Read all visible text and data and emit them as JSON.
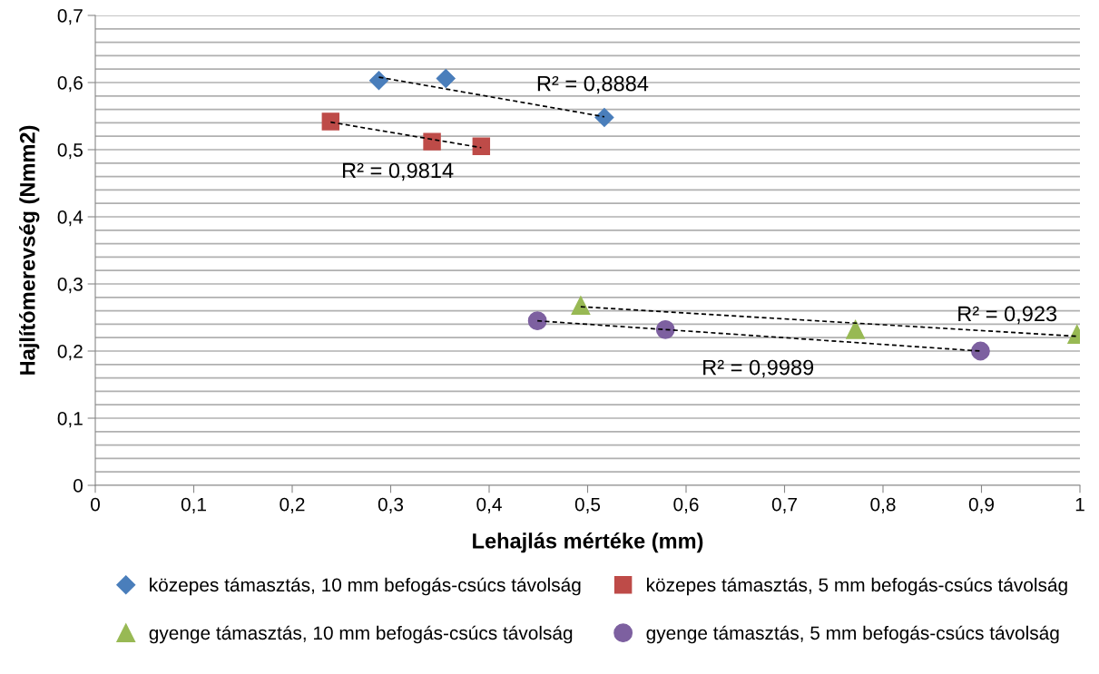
{
  "chart_data": {
    "type": "scatter",
    "xlabel": "Lehajlás mértéke (mm)",
    "ylabel": "Hajlítómerevség (Nmm2)",
    "xlim": [
      0,
      1
    ],
    "ylim": [
      0,
      0.7
    ],
    "xticks": [
      0,
      {
        "value": 0.1,
        "label": "0,1"
      },
      {
        "value": 0.2,
        "label": "0,2"
      },
      {
        "value": 0.3,
        "label": "0,3"
      },
      {
        "value": 0.4,
        "label": "0,4"
      },
      {
        "value": 0.5,
        "label": "0,5"
      },
      {
        "value": 0.6,
        "label": "0,6"
      },
      {
        "value": 0.7,
        "label": "0,7"
      },
      {
        "value": 0.8,
        "label": "0,8"
      },
      {
        "value": 0.9,
        "label": "0,9"
      },
      1
    ],
    "yticks": [
      0,
      {
        "value": 0.02,
        "label": null
      },
      {
        "value": 0.04,
        "label": null
      },
      {
        "value": 0.06,
        "label": null
      },
      {
        "value": 0.08,
        "label": null
      },
      {
        "value": 0.1,
        "label": "0,1"
      },
      {
        "value": 0.12,
        "label": null
      },
      {
        "value": 0.14,
        "label": null
      },
      {
        "value": 0.16,
        "label": null
      },
      {
        "value": 0.18,
        "label": null
      },
      {
        "value": 0.2,
        "label": "0,2"
      },
      {
        "value": 0.22,
        "label": null
      },
      {
        "value": 0.24,
        "label": null
      },
      {
        "value": 0.26,
        "label": null
      },
      {
        "value": 0.28,
        "label": null
      },
      {
        "value": 0.3,
        "label": "0,3"
      },
      {
        "value": 0.32,
        "label": null
      },
      {
        "value": 0.34,
        "label": null
      },
      {
        "value": 0.36,
        "label": null
      },
      {
        "value": 0.38,
        "label": null
      },
      {
        "value": 0.4,
        "label": "0,4"
      },
      {
        "value": 0.42,
        "label": null
      },
      {
        "value": 0.44,
        "label": null
      },
      {
        "value": 0.46,
        "label": null
      },
      {
        "value": 0.48,
        "label": null
      },
      {
        "value": 0.5,
        "label": "0,5"
      },
      {
        "value": 0.52,
        "label": null
      },
      {
        "value": 0.54,
        "label": null
      },
      {
        "value": 0.56,
        "label": null
      },
      {
        "value": 0.58,
        "label": null
      },
      {
        "value": 0.6,
        "label": "0,6"
      },
      {
        "value": 0.62,
        "label": null
      },
      {
        "value": 0.64,
        "label": null
      },
      {
        "value": 0.66,
        "label": null
      },
      {
        "value": 0.68,
        "label": null
      },
      {
        "value": 0.7,
        "label": "0,7"
      }
    ],
    "grid": "y",
    "legend": "bottom",
    "series": [
      {
        "name": "közepes támasztás, 10 mm befogás-csúcs távolság",
        "color": "#4a7ebb",
        "marker": "diamond",
        "x": [
          0.288,
          0.356,
          0.517
        ],
        "values": [
          0.603,
          0.606,
          0.548
        ]
      },
      {
        "name": "közepes támasztás, 5 mm befogás-csúcs távolság",
        "color": "#be4b48",
        "marker": "square",
        "x": [
          0.239,
          0.342,
          0.392
        ],
        "values": [
          0.542,
          0.512,
          0.505
        ]
      },
      {
        "name": "gyenge támasztás, 10 mm befogás-csúcs távolság",
        "color": "#98b954",
        "marker": "triangle",
        "x": [
          0.493,
          0.772,
          0.997
        ],
        "values": [
          0.268,
          0.232,
          0.225
        ]
      },
      {
        "name": "gyenge támasztás, 5 mm befogás-csúcs távolság",
        "color": "#7d60a0",
        "marker": "circle",
        "x": [
          0.449,
          0.579,
          0.899
        ],
        "values": [
          0.245,
          0.232,
          0.2
        ]
      },
      {
        "type": "line",
        "color": "#000000",
        "line_style": "dashed",
        "marker": "none",
        "x": [
          0.288,
          0.517
        ],
        "values": [
          0.608,
          0.549
        ]
      },
      {
        "type": "line",
        "color": "#000000",
        "line_style": "dashed",
        "marker": "none",
        "x": [
          0.239,
          0.392
        ],
        "values": [
          0.541,
          0.503
        ]
      },
      {
        "type": "line",
        "color": "#000000",
        "line_style": "dashed",
        "marker": "none",
        "x": [
          0.493,
          0.997
        ],
        "values": [
          0.266,
          0.222
        ]
      },
      {
        "type": "line",
        "color": "#000000",
        "line_style": "dashed",
        "marker": "none",
        "x": [
          0.449,
          0.899
        ],
        "values": [
          0.245,
          0.2
        ]
      }
    ],
    "annotations": [
      "R² = 0,8884",
      "R² = 0,9814",
      "R² = 0,923",
      "R² = 0,9989"
    ]
  }
}
